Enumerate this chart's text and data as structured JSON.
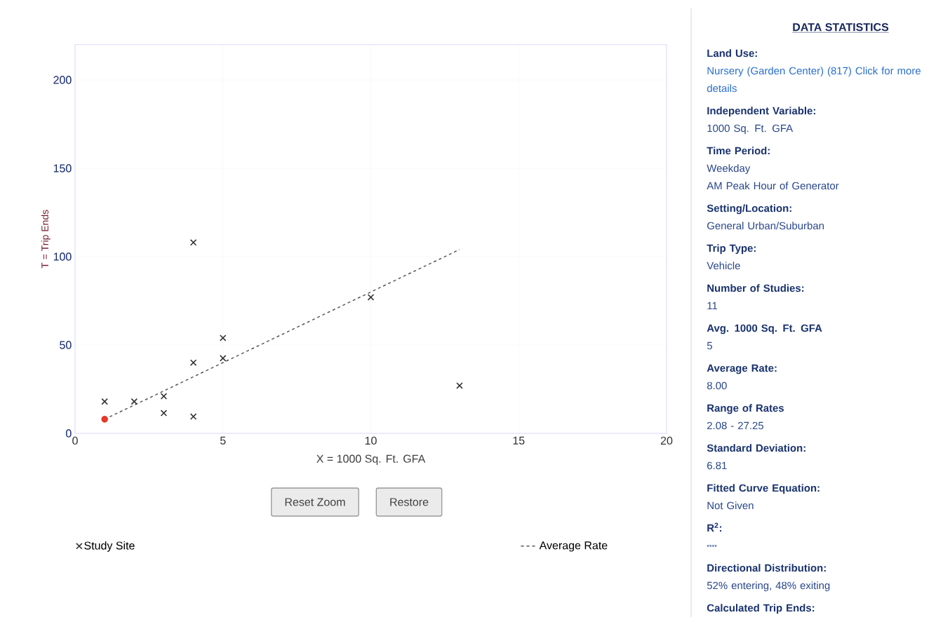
{
  "chart_data": [
    {
      "type": "scatter",
      "xlabel": "X = 1000 Sq. Ft. GFA",
      "ylabel": "T = Trip Ends",
      "xlim": [
        0,
        20
      ],
      "ylim": [
        0,
        220
      ],
      "xticks": [
        0,
        5,
        10,
        15,
        20
      ],
      "yticks": [
        0,
        50,
        100,
        150,
        200
      ],
      "grid": true,
      "legend": "bottom",
      "annotations": [
        "Reset Zoom",
        "Restore"
      ],
      "series": [
        {
          "name": "Study Site",
          "type": "scatter",
          "marker": "cross",
          "color": "#333333",
          "x": [
            1,
            2,
            3,
            3,
            4,
            4,
            4,
            5,
            5,
            10,
            13
          ],
          "values": [
            18,
            18,
            21,
            11.5,
            108,
            40,
            9.5,
            54,
            42.5,
            77,
            27
          ]
        },
        {
          "name": "Average Rate",
          "type": "line",
          "line_style": "dashed",
          "marker": "none",
          "color": "#555555",
          "x": [
            1,
            13
          ],
          "values": [
            8,
            104
          ]
        },
        {
          "type": "scatter",
          "marker": "circle",
          "color": "#e8382a",
          "x": [
            1
          ],
          "values": [
            8
          ]
        }
      ]
    },
    {
      "type": "other",
      "title": "DATA STATISTICS",
      "annotations": [
        "Land Use:",
        "Nursery (Garden Center) (817) Click for more details",
        "Independent Variable:",
        "1000 Sq. Ft. GFA",
        "Time Period:",
        "Weekday",
        "AM Peak Hour of Generator",
        "Setting/Location:",
        "General Urban/Suburban",
        "Trip Type:",
        "Vehicle",
        "Number of Studies:",
        "11",
        "Avg. 1000 Sq. Ft. GFA",
        "5",
        "Average Rate:",
        "8.00",
        "Range of Rates",
        "2.08 - 27.25",
        "Standard Deviation:",
        "6.81",
        "Fitted Curve Equation:",
        "Not Given",
        "R$^{2}$:",
        "****",
        "Directional Distribution:",
        "52% entering, 48% exiting",
        "Calculated Trip Ends:"
      ]
    }
  ]
}
